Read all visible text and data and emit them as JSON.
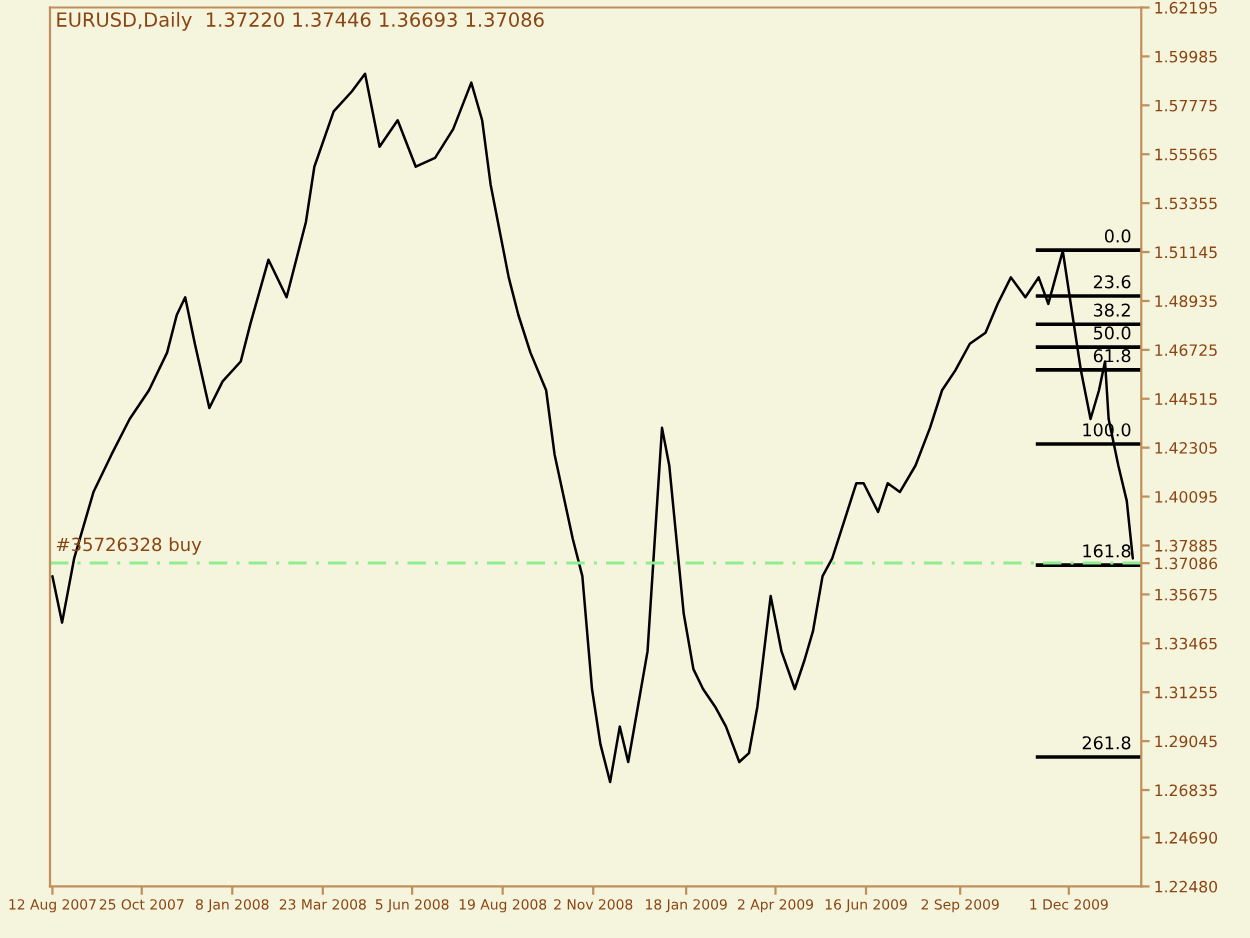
{
  "chart_data": {
    "type": "line",
    "title": "EURUSD,Daily  1.37220 1.37446 1.36693 1.37086",
    "x": [
      "2007-08-12",
      "2007-08-20",
      "2007-08-30",
      "2007-09-15",
      "2007-09-30",
      "2007-10-15",
      "2007-10-31",
      "2007-11-15",
      "2007-11-23",
      "2007-11-30",
      "2007-12-08",
      "2007-12-20",
      "2007-12-31",
      "2008-01-15",
      "2008-01-23",
      "2008-02-07",
      "2008-02-22",
      "2008-03-09",
      "2008-03-16",
      "2008-04-01",
      "2008-04-16",
      "2008-04-27",
      "2008-05-09",
      "2008-05-24",
      "2008-06-08",
      "2008-06-24",
      "2008-07-09",
      "2008-07-24",
      "2008-08-02",
      "2008-08-09",
      "2008-08-24",
      "2008-09-01",
      "2008-09-11",
      "2008-09-24",
      "2008-10-01",
      "2008-10-16",
      "2008-10-24",
      "2008-11-01",
      "2008-11-08",
      "2008-11-16",
      "2008-11-24",
      "2008-12-01",
      "2008-12-09",
      "2008-12-17",
      "2008-12-24",
      "2008-12-29",
      "2009-01-04",
      "2009-01-16",
      "2009-01-24",
      "2009-02-01",
      "2009-02-11",
      "2009-02-20",
      "2009-03-03",
      "2009-03-11",
      "2009-03-18",
      "2009-03-29",
      "2009-04-07",
      "2009-04-18",
      "2009-04-26",
      "2009-05-03",
      "2009-05-11",
      "2009-05-19",
      "2009-05-29",
      "2009-06-08",
      "2009-06-14",
      "2009-06-26",
      "2009-07-04",
      "2009-07-14",
      "2009-07-27",
      "2009-08-08",
      "2009-08-18",
      "2009-08-29",
      "2009-09-10",
      "2009-09-23",
      "2009-10-03",
      "2009-10-14",
      "2009-10-26",
      "2009-11-06",
      "2009-11-14",
      "2009-11-26",
      "2009-12-04",
      "2009-12-11",
      "2009-12-19",
      "2009-12-26",
      "2009-12-31",
      "2010-01-03",
      "2010-01-11",
      "2010-01-18",
      "2010-01-23"
    ],
    "series": [
      {
        "color": "#000000",
        "values": [
          1.365,
          1.344,
          1.373,
          1.403,
          1.42,
          1.436,
          1.449,
          1.466,
          1.483,
          1.491,
          1.47,
          1.441,
          1.453,
          1.462,
          1.479,
          1.508,
          1.491,
          1.525,
          1.55,
          1.575,
          1.584,
          1.592,
          1.559,
          1.571,
          1.55,
          1.554,
          1.567,
          1.588,
          1.571,
          1.542,
          1.5,
          1.483,
          1.466,
          1.449,
          1.42,
          1.382,
          1.365,
          1.314,
          1.289,
          1.272,
          1.297,
          1.281,
          1.306,
          1.331,
          1.39,
          1.432,
          1.415,
          1.348,
          1.323,
          1.314,
          1.306,
          1.297,
          1.281,
          1.285,
          1.306,
          1.356,
          1.331,
          1.314,
          1.327,
          1.34,
          1.365,
          1.373,
          1.39,
          1.407,
          1.407,
          1.394,
          1.407,
          1.403,
          1.415,
          1.432,
          1.449,
          1.458,
          1.47,
          1.475,
          1.488,
          1.5,
          1.491,
          1.5,
          1.488,
          1.512,
          1.483,
          1.458,
          1.436,
          1.449,
          1.462,
          1.436,
          1.415,
          1.399,
          1.373
        ]
      }
    ],
    "xlim": [
      "2007-08-10",
      "2010-01-30"
    ],
    "xticks": [
      {
        "value": "2007-08-12",
        "label": "12 Aug 2007"
      },
      {
        "value": "2007-10-25",
        "label": "25 Oct 2007"
      },
      {
        "value": "2008-01-08",
        "label": "8 Jan 2008"
      },
      {
        "value": "2008-03-23",
        "label": "23 Mar 2008"
      },
      {
        "value": "2008-06-05",
        "label": "5 Jun 2008"
      },
      {
        "value": "2008-08-19",
        "label": "19 Aug 2008"
      },
      {
        "value": "2008-11-02",
        "label": "2 Nov 2008"
      },
      {
        "value": "2009-01-18",
        "label": "18 Jan 2009"
      },
      {
        "value": "2009-04-02",
        "label": "2 Apr 2009"
      },
      {
        "value": "2009-06-16",
        "label": "16 Jun 2009"
      },
      {
        "value": "2009-09-02",
        "label": "2 Sep 2009"
      },
      {
        "value": "2009-12-01",
        "label": "1 Dec 2009"
      }
    ],
    "ylim": [
      1.2248,
      1.62195
    ],
    "yticks": [
      1.62195,
      1.59985,
      1.57775,
      1.55565,
      1.53355,
      1.51145,
      1.48935,
      1.46725,
      1.44515,
      1.42305,
      1.40095,
      1.37885,
      1.37086,
      1.35675,
      1.33465,
      1.31255,
      1.29045,
      1.26835,
      {
        "value": 1.2469,
        "label": "1.24690"
      },
      {
        "value": 1.2248,
        "label": "1.22480"
      }
    ],
    "annotations": [
      {
        "text": "0.0",
        "x": "2010-01-22",
        "y": 1.5123
      },
      {
        "text": "23.6",
        "x": "2010-01-22",
        "y": 1.4916
      },
      {
        "text": "38.2",
        "x": "2010-01-22",
        "y": 1.4788
      },
      {
        "text": "50.0",
        "x": "2010-01-22",
        "y": 1.4685
      },
      {
        "text": "61.8",
        "x": "2010-01-22",
        "y": 1.4582
      },
      {
        "text": "100.0",
        "x": "2010-01-22",
        "y": 1.4247
      },
      {
        "text": "161.8",
        "x": "2010-01-22",
        "y": 1.37
      },
      {
        "text": "261.8",
        "x": "2010-01-22",
        "y": 1.2833
      }
    ],
    "ref_lines": [
      {
        "axis": "y",
        "value": 1.5123,
        "color": "#000000",
        "line_style": "solid"
      },
      {
        "axis": "y",
        "value": 1.4916,
        "color": "#000000",
        "line_style": "solid"
      },
      {
        "axis": "y",
        "value": 1.4788,
        "color": "#000000",
        "line_style": "solid"
      },
      {
        "axis": "y",
        "value": 1.4685,
        "color": "#000000",
        "line_style": "solid"
      },
      {
        "axis": "y",
        "value": 1.4582,
        "color": "#000000",
        "line_style": "solid"
      },
      {
        "axis": "y",
        "value": 1.4247,
        "color": "#000000",
        "line_style": "solid"
      },
      {
        "axis": "y",
        "value": 1.37,
        "color": "#000000",
        "line_style": "solid"
      },
      {
        "axis": "y",
        "value": 1.2833,
        "color": "#000000",
        "line_style": "solid"
      },
      {
        "axis": "y",
        "value": 1.3709,
        "label": "#35726328 buy",
        "color": "#90ee90",
        "line_style": "dashed"
      }
    ],
    "grid": false,
    "legend": false,
    "marker": "none",
    "line_style": "solid"
  }
}
